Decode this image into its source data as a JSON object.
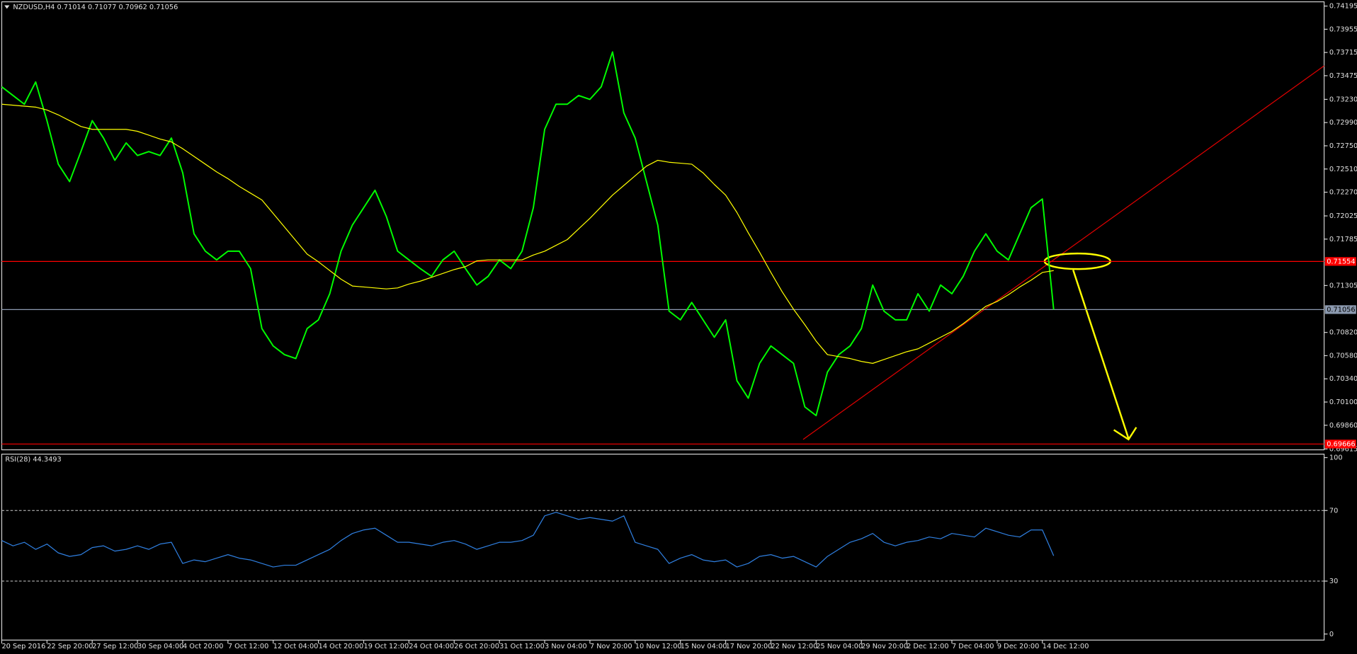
{
  "chart_data": [
    {
      "type": "line",
      "title": "NZDUSD,H4  0.71014 0.71077 0.70962 0.71056",
      "categories": [
        "20 Sep 2016",
        null,
        null,
        null,
        "22 Sep 20:00",
        null,
        null,
        null,
        "27 Sep 12:00",
        null,
        null,
        null,
        "30 Sep 04:00",
        null,
        null,
        null,
        "4 Oct 20:00",
        null,
        null,
        null,
        "7 Oct 12:00",
        null,
        null,
        null,
        "12 Oct 04:00",
        null,
        null,
        null,
        "14 Oct 20:00",
        null,
        null,
        null,
        "19 Oct 12:00",
        null,
        null,
        null,
        "24 Oct 04:00",
        null,
        null,
        null,
        "26 Oct 20:00",
        null,
        null,
        null,
        "31 Oct 12:00",
        null,
        null,
        null,
        "3 Nov 04:00",
        null,
        null,
        null,
        "7 Nov 20:00",
        null,
        null,
        null,
        "10 Nov 12:00",
        null,
        null,
        null,
        "15 Nov 04:00",
        null,
        null,
        null,
        "17 Nov 20:00",
        null,
        null,
        null,
        "22 Nov 12:00",
        null,
        null,
        null,
        "25 Nov 04:00",
        null,
        null,
        null,
        "29 Nov 20:00",
        null,
        null,
        null,
        "2 Dec 12:00",
        null,
        null,
        null,
        "7 Dec 04:00",
        null,
        null,
        null,
        "9 Dec 20:00",
        null,
        null,
        null,
        "14 Dec 12:00",
        null
      ],
      "series": [
        {
          "color": "#00ff00",
          "values": [
            0.7336,
            0.7327,
            0.7318,
            0.7341,
            0.7301,
            0.7256,
            0.7238,
            0.7269,
            0.7301,
            0.7283,
            0.726,
            0.7278,
            0.7265,
            0.7269,
            0.7265,
            0.7283,
            0.7247,
            0.7184,
            0.7166,
            0.7157,
            0.7166,
            0.7166,
            0.7148,
            0.7086,
            0.7068,
            0.7059,
            0.7055,
            0.7086,
            0.7095,
            0.7122,
            0.7166,
            0.7193,
            0.7211,
            0.7229,
            0.7202,
            0.7166,
            0.7157,
            0.7148,
            0.714,
            0.7157,
            0.7166,
            0.7148,
            0.7131,
            0.714,
            0.7157,
            0.7148,
            0.7166,
            0.7211,
            0.7292,
            0.7318,
            0.7318,
            0.7327,
            0.7323,
            0.7336,
            0.7372,
            0.7309,
            0.7283,
            0.7238,
            0.7193,
            0.7104,
            0.7095,
            0.7113,
            0.7095,
            0.7077,
            0.7095,
            0.7032,
            0.7014,
            0.705,
            0.7068,
            0.7059,
            0.705,
            0.7005,
            0.6996,
            0.7041,
            0.7059,
            0.7068,
            0.7086,
            0.7131,
            0.7104,
            0.7095,
            0.7095,
            0.7122,
            0.7104,
            0.7131,
            0.7122,
            0.714,
            0.7166,
            0.7184,
            0.7166,
            0.7157,
            0.7184,
            0.7211,
            0.722,
            0.71056
          ]
        },
        {
          "color": "#ffff00",
          "values": [
            0.7318,
            0.7317,
            0.7316,
            0.7315,
            0.7312,
            0.7307,
            0.7301,
            0.7295,
            0.7292,
            0.7292,
            0.7292,
            0.7292,
            0.729,
            0.7286,
            0.7282,
            0.7279,
            0.7272,
            0.7264,
            0.7256,
            0.7248,
            0.7241,
            0.7233,
            0.7226,
            0.7219,
            0.7205,
            0.7191,
            0.7177,
            0.7163,
            0.7155,
            0.7146,
            0.7137,
            0.713,
            0.7129,
            0.7128,
            0.7127,
            0.7128,
            0.7132,
            0.7135,
            0.7139,
            0.7143,
            0.7147,
            0.715,
            0.7156,
            0.7157,
            0.7157,
            0.7157,
            0.7157,
            0.7162,
            0.7166,
            0.7172,
            0.7178,
            0.7189,
            0.72,
            0.7212,
            0.7224,
            0.7234,
            0.7244,
            0.7254,
            0.726,
            0.7258,
            0.7257,
            0.7256,
            0.7247,
            0.7235,
            0.7224,
            0.7206,
            0.7185,
            0.7165,
            0.7144,
            0.7124,
            0.7106,
            0.709,
            0.7073,
            0.7059,
            0.7057,
            0.7055,
            0.7052,
            0.705,
            0.7054,
            0.7058,
            0.7062,
            0.7065,
            0.7071,
            0.7077,
            0.7083,
            0.7091,
            0.71,
            0.7109,
            0.7114,
            0.7121,
            0.7129,
            0.7136,
            0.7144,
            0.7146
          ]
        }
      ],
      "ylim": [
        0.69606,
        0.74239
      ],
      "yticks": [
        0.74195,
        0.73955,
        0.73715,
        0.73475,
        {
          "value": 0.7323,
          "label": "0.73230"
        },
        {
          "value": 0.7299,
          "label": "0.72990"
        },
        {
          "value": 0.7275,
          "label": "0.72750"
        },
        {
          "value": 0.7251,
          "label": "0.72510"
        },
        {
          "value": 0.7227,
          "label": "0.72270"
        },
        0.72025,
        0.71785,
        0.71305,
        {
          "value": 0.7082,
          "label": "0.70820"
        },
        {
          "value": 0.7058,
          "label": "0.70580"
        },
        {
          "value": 0.7034,
          "label": "0.70340"
        },
        {
          "value": 0.701,
          "label": "0.70100"
        },
        {
          "value": 0.6986,
          "label": "0.69860"
        },
        0.69615
      ],
      "levels": [
        {
          "value": 0.71554,
          "color": "#ff0000"
        },
        {
          "value": 0.69666,
          "color": "#ff0000"
        },
        {
          "value": 0.71056,
          "color": "#8c9ab0"
        }
      ]
    },
    {
      "type": "line",
      "title": "RSI(28) 44.3493",
      "series": [
        {
          "color": "#2f7fe0",
          "values": [
            53,
            50,
            52,
            48,
            51,
            46,
            44,
            45,
            49,
            50,
            47,
            48,
            50,
            48,
            51,
            52,
            40,
            42,
            41,
            43,
            45,
            43,
            42,
            40,
            38,
            39,
            39,
            42,
            45,
            48,
            53,
            57,
            59,
            60,
            56,
            52,
            52,
            51,
            50,
            52,
            53,
            51,
            48,
            50,
            52,
            52,
            53,
            56,
            67,
            69,
            67,
            65,
            66,
            65,
            64,
            67,
            52,
            50,
            48,
            40,
            43,
            45,
            42,
            41,
            42,
            38,
            40,
            44,
            45,
            43,
            44,
            41,
            38,
            44,
            48,
            52,
            54,
            57,
            52,
            50,
            52,
            53,
            55,
            54,
            57,
            56,
            55,
            60,
            58,
            56,
            55,
            59,
            59,
            44.3493
          ]
        }
      ],
      "ylim": [
        0,
        100
      ],
      "yticks": [
        100,
        70,
        30,
        0
      ],
      "levels": [
        {
          "value": 70,
          "color": "#cccccc"
        },
        {
          "value": 30,
          "color": "#cccccc"
        }
      ]
    }
  ]
}
